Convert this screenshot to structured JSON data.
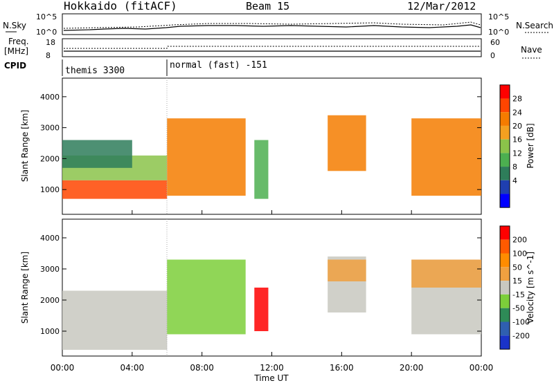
{
  "header": {
    "station": "Hokkaido (fitACF)",
    "beam": "Beam 15",
    "date": "12/Mar/2012"
  },
  "param_panels": {
    "nsky_label": "N.Sky",
    "nsearch_label": "N.Search",
    "freq_label_1": "Freq.",
    "freq_label_2": "[MHz]",
    "nave_label": "Nave",
    "cpid_label": "CPID",
    "noise_ticks_left": [
      "10^5",
      "10^0"
    ],
    "noise_ticks_right": [
      "10^5",
      "10^0"
    ],
    "freq_ticks": [
      "18",
      "8"
    ],
    "nave_ticks": [
      "60",
      "0"
    ]
  },
  "cpid_segments": [
    {
      "label": "themis 3300",
      "start": "00:00",
      "end": "06:00"
    },
    {
      "label": "normal (fast) -151",
      "start": "06:00",
      "end": "24:00"
    }
  ],
  "power_panel": {
    "ylabel": "Slant Range [km]",
    "yticks": [
      1000,
      2000,
      3000,
      4000
    ],
    "colorbar_title": "Power [dB]",
    "colorbar_ticks": [
      "28",
      "24",
      "20",
      "16",
      "12",
      "8",
      "4"
    ],
    "colors": [
      "#0000ff",
      "#1f3fb0",
      "#2e7d5a",
      "#4caf50",
      "#8bc34a",
      "#f4a020",
      "#f57c00",
      "#ff4500",
      "#ff0000"
    ]
  },
  "velocity_panel": {
    "ylabel": "Slant Range [km]",
    "yticks": [
      1000,
      2000,
      3000,
      4000
    ],
    "colorbar_title": "Velocity [m s^-1]",
    "colorbar_ticks": [
      "200",
      "100",
      "50",
      "15",
      "-15",
      "-50",
      "-100",
      "-200"
    ],
    "colors": [
      "#1a33c8",
      "#2f5fb0",
      "#2e8b57",
      "#7ccf3a",
      "#c8c8c0",
      "#f0a040",
      "#ff8c00",
      "#ff5a00",
      "#ff0000"
    ]
  },
  "x_axis": {
    "label": "Time UT",
    "ticks": [
      "00:00",
      "04:00",
      "08:00",
      "12:00",
      "16:00",
      "20:00",
      "00:00"
    ]
  },
  "chart_data": [
    {
      "type": "heatmap",
      "title": "Power [dB]",
      "xlabel": "",
      "ylabel": "Slant Range [km]",
      "xlim": [
        0,
        24
      ],
      "ylim": [
        200,
        4600
      ],
      "zlim": [
        0,
        30
      ],
      "regions": [
        {
          "t0": 0.0,
          "t1": 6.0,
          "r0": 700,
          "r1": 1300,
          "value": 27
        },
        {
          "t0": 0.0,
          "t1": 6.0,
          "r0": 1300,
          "r1": 2100,
          "value": 15
        },
        {
          "t0": 0.0,
          "t1": 4.0,
          "r0": 1700,
          "r1": 2600,
          "value": 9
        },
        {
          "t0": 6.0,
          "t1": 10.5,
          "r0": 800,
          "r1": 3300,
          "value": 22
        },
        {
          "t0": 11.0,
          "t1": 11.8,
          "r0": 700,
          "r1": 2600,
          "value": 10
        },
        {
          "t0": 15.2,
          "t1": 17.4,
          "r0": 1600,
          "r1": 3400,
          "value": 21
        },
        {
          "t0": 20.0,
          "t1": 24.0,
          "r0": 800,
          "r1": 3300,
          "value": 21
        }
      ]
    },
    {
      "type": "heatmap",
      "title": "Velocity [m s^-1]",
      "xlabel": "Time UT",
      "ylabel": "Slant Range [km]",
      "xlim": [
        0,
        24
      ],
      "ylim": [
        200,
        4600
      ],
      "zlim": [
        -200,
        200
      ],
      "regions": [
        {
          "t0": 0.0,
          "t1": 6.0,
          "r0": 400,
          "r1": 2300,
          "value": 0
        },
        {
          "t0": 6.0,
          "t1": 10.5,
          "r0": 900,
          "r1": 3300,
          "value": -40
        },
        {
          "t0": 11.0,
          "t1": 11.8,
          "r0": 1000,
          "r1": 2400,
          "value": 200
        },
        {
          "t0": 15.2,
          "t1": 17.4,
          "r0": 1600,
          "r1": 3400,
          "value": 0
        },
        {
          "t0": 15.2,
          "t1": 17.4,
          "r0": 2600,
          "r1": 3300,
          "value": 50
        },
        {
          "t0": 20.0,
          "t1": 24.0,
          "r0": 900,
          "r1": 3300,
          "value": 0
        },
        {
          "t0": 20.0,
          "t1": 24.0,
          "r0": 2400,
          "r1": 3300,
          "value": 50
        }
      ]
    }
  ]
}
